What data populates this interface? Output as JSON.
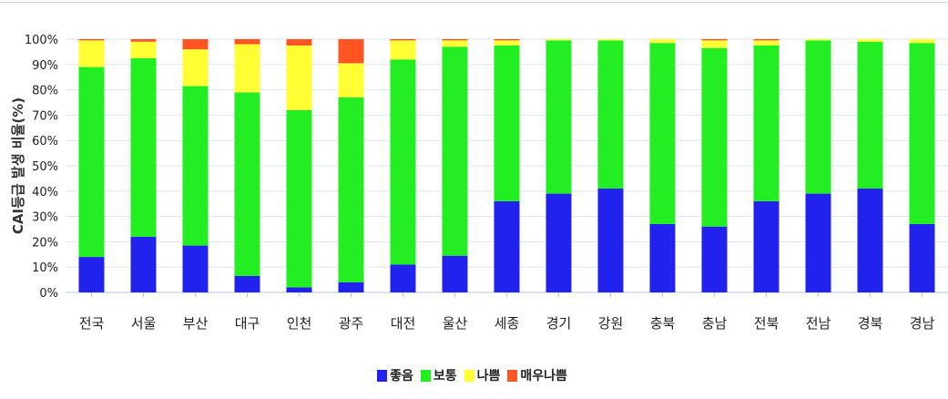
{
  "chart_data": {
    "type": "bar",
    "stacked": true,
    "ylabel": "CAI등급 발생 비율(%)",
    "ylim": [
      0,
      100
    ],
    "yticks": [
      "0%",
      "10%",
      "20%",
      "30%",
      "40%",
      "50%",
      "60%",
      "70%",
      "80%",
      "90%",
      "100%"
    ],
    "grid": true,
    "legend_position": "bottom",
    "categories": [
      "전국",
      "서울",
      "부산",
      "대구",
      "인천",
      "광주",
      "대전",
      "울산",
      "세종",
      "경기",
      "강원",
      "충북",
      "충남",
      "전북",
      "전남",
      "경북",
      "경남"
    ],
    "series": [
      {
        "name": "좋음",
        "color": "#2222ee",
        "values": [
          14,
          22,
          18.5,
          6.5,
          2,
          4,
          11,
          14.5,
          36,
          39,
          41,
          27,
          26,
          36,
          39,
          41,
          27
        ]
      },
      {
        "name": "보통",
        "color": "#22ee22",
        "values": [
          75,
          70.5,
          63,
          72.5,
          70,
          73,
          81,
          82.5,
          61.5,
          60.5,
          58.5,
          71.5,
          70.5,
          61.5,
          60.5,
          58,
          71.5
        ]
      },
      {
        "name": "나쁨",
        "color": "#ffff33",
        "values": [
          10.5,
          6.5,
          14.5,
          19,
          25.5,
          13.5,
          7.5,
          2.5,
          2,
          0.5,
          0.5,
          1.5,
          3,
          2,
          0.5,
          1,
          1.5
        ]
      },
      {
        "name": "매우나쁨",
        "color": "#ff5522",
        "values": [
          0.5,
          1,
          4,
          2,
          2.5,
          9.5,
          0.5,
          0.5,
          0.5,
          0,
          0,
          0,
          0.5,
          0.5,
          0,
          0,
          0
        ]
      }
    ]
  }
}
